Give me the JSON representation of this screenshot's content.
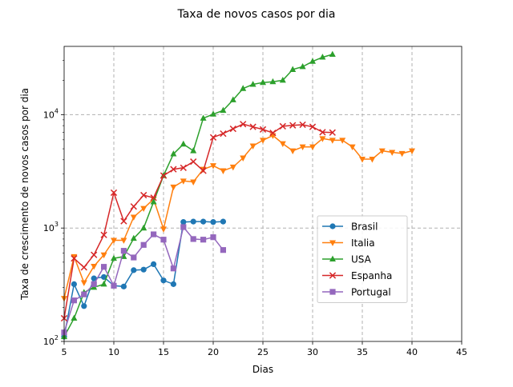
{
  "chart_data": {
    "type": "line",
    "title": "Taxa de novos casos por dia",
    "xlabel": "Dias",
    "ylabel": "Taxa de crescimento de novos casos por dia",
    "xlim": [
      5,
      45
    ],
    "ylim": [
      100,
      40000
    ],
    "yscale": "log",
    "grid": true,
    "legend_position": "lower-right",
    "x_ticks": [
      5,
      10,
      15,
      20,
      25,
      30,
      35,
      40,
      45
    ],
    "y_ticks": [
      {
        "value": 100,
        "base": "10",
        "exp": "2"
      },
      {
        "value": 1000,
        "base": "10",
        "exp": "3"
      },
      {
        "value": 10000,
        "base": "10",
        "exp": "4"
      }
    ],
    "series": [
      {
        "name": "Brasil",
        "color": "#1f77b4",
        "marker": "circle",
        "x": [
          5,
          6,
          7,
          8,
          9,
          10,
          11,
          12,
          13,
          14,
          15,
          16,
          17,
          18,
          19,
          20,
          21
        ],
        "y": [
          110,
          320,
          205,
          360,
          370,
          310,
          305,
          425,
          430,
          480,
          345,
          320,
          1130,
          1140,
          1140,
          1130,
          1140
        ]
      },
      {
        "name": "Italia",
        "color": "#ff7f0e",
        "marker": "triangle-down",
        "x": [
          5,
          6,
          7,
          8,
          9,
          10,
          11,
          12,
          13,
          14,
          15,
          16,
          17,
          18,
          19,
          20,
          21,
          22,
          23,
          24,
          25,
          26,
          27,
          28,
          29,
          30,
          31,
          32,
          33,
          34,
          35,
          36,
          37,
          38,
          39,
          40
        ],
        "y": [
          240,
          560,
          330,
          460,
          580,
          780,
          780,
          1250,
          1490,
          1800,
          980,
          2300,
          2600,
          2550,
          3300,
          3550,
          3200,
          3450,
          4150,
          5300,
          5950,
          6550,
          5550,
          4800,
          5200,
          5200,
          6150,
          5950,
          5950,
          5200,
          4050,
          4050,
          4800,
          4650,
          4550,
          4800
        ]
      },
      {
        "name": "USA",
        "color": "#2ca02c",
        "marker": "triangle-up",
        "x": [
          5,
          6,
          7,
          8,
          9,
          10,
          11,
          12,
          13,
          14,
          15,
          16,
          17,
          18,
          19,
          20,
          21,
          22,
          23,
          24,
          25,
          26,
          27,
          28,
          29,
          30,
          31,
          32
        ],
        "y": [
          110,
          160,
          270,
          300,
          320,
          540,
          560,
          810,
          1000,
          1700,
          2900,
          4500,
          5500,
          4800,
          9300,
          10100,
          10900,
          13500,
          17000,
          18500,
          19200,
          19500,
          20100,
          25000,
          26500,
          29500,
          32100,
          34000
        ]
      },
      {
        "name": "Espanha",
        "color": "#d62728",
        "marker": "x",
        "x": [
          5,
          6,
          7,
          8,
          9,
          10,
          11,
          12,
          13,
          14,
          15,
          16,
          17,
          18,
          19,
          20,
          21,
          22,
          23,
          24,
          25,
          26,
          27,
          28,
          29,
          30,
          31,
          32
        ],
        "y": [
          160,
          540,
          450,
          580,
          870,
          2050,
          1150,
          1550,
          1950,
          1850,
          2900,
          3300,
          3400,
          3850,
          3200,
          6300,
          6800,
          7500,
          8250,
          7800,
          7400,
          6900,
          7900,
          8050,
          8150,
          7800,
          7000,
          6950
        ]
      },
      {
        "name": "Portugal",
        "color": "#9467bd",
        "marker": "square",
        "x": [
          5,
          6,
          7,
          8,
          9,
          10,
          11,
          12,
          13,
          14,
          15,
          16,
          17,
          18,
          19,
          20,
          21
        ],
        "y": [
          120,
          230,
          260,
          320,
          455,
          310,
          630,
          550,
          710,
          880,
          790,
          440,
          1020,
          800,
          790,
          830,
          640
        ]
      }
    ]
  }
}
